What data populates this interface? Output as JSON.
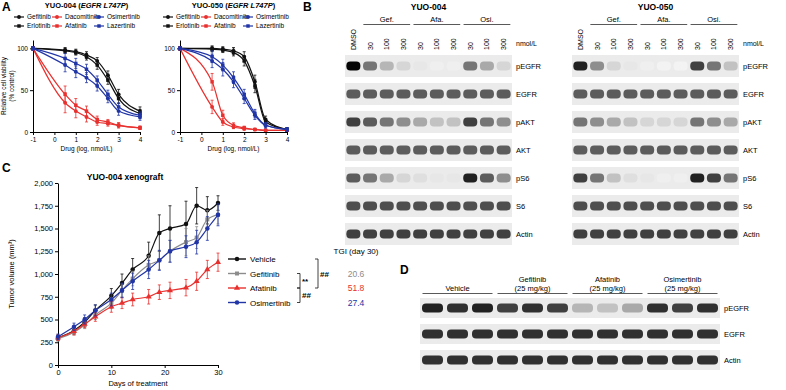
{
  "panel_labels": [
    "A",
    "B",
    "C",
    "D"
  ],
  "chart_data": [
    {
      "type": "line",
      "title": "YUO-004 (EGFR L747P)",
      "ylabel": [
        "Relative cell viability",
        "(% control)"
      ],
      "xlabel": "Drug (log, nmol/L)",
      "x": [
        -1,
        0.5,
        1,
        1.5,
        2,
        2.5,
        3,
        4
      ],
      "xlim": [
        -1,
        4
      ],
      "xticks": [
        -1,
        0,
        1,
        2,
        3,
        4
      ],
      "ylim": [
        0,
        110
      ],
      "yticks": [
        0,
        50,
        100
      ],
      "legend": "top",
      "series": [
        {
          "name": "Gefitinib",
          "color": "#111111",
          "marker": "circle",
          "values": [
            100,
            98,
            96,
            92,
            85,
            68,
            45,
            25
          ],
          "errors": [
            2,
            3,
            3,
            4,
            4,
            5,
            6,
            5
          ]
        },
        {
          "name": "Erlotinib",
          "color": "#111111",
          "marker": "square",
          "values": [
            100,
            97,
            95,
            90,
            80,
            62,
            40,
            22
          ],
          "errors": [
            2,
            3,
            3,
            4,
            5,
            5,
            6,
            5
          ]
        },
        {
          "name": "Dacomitinib",
          "color": "#e8312f",
          "marker": "circle",
          "values": [
            100,
            35,
            25,
            18,
            12,
            10,
            8,
            5
          ],
          "errors": [
            2,
            12,
            8,
            6,
            4,
            3,
            3,
            2
          ]
        },
        {
          "name": "Afatinib",
          "color": "#e8312f",
          "marker": "square",
          "values": [
            100,
            45,
            32,
            25,
            15,
            12,
            8,
            5
          ],
          "errors": [
            2,
            10,
            8,
            6,
            4,
            3,
            3,
            2
          ]
        },
        {
          "name": "Osimertinib",
          "color": "#2135a6",
          "marker": "circle",
          "values": [
            100,
            80,
            72,
            65,
            55,
            40,
            25,
            18
          ],
          "errors": [
            2,
            8,
            7,
            6,
            6,
            5,
            5,
            4
          ]
        },
        {
          "name": "Lazertinib",
          "color": "#2135a6",
          "marker": "square",
          "values": [
            100,
            88,
            82,
            75,
            62,
            45,
            30,
            20
          ],
          "errors": [
            2,
            6,
            6,
            6,
            5,
            5,
            5,
            4
          ]
        }
      ]
    },
    {
      "type": "line",
      "title": "YUO-050 (EGFR L747P)",
      "xlabel": "Drug (log, nmol/L)",
      "x": [
        -1,
        0.5,
        1,
        1.5,
        2,
        2.5,
        3,
        4
      ],
      "xlim": [
        -1,
        4
      ],
      "xticks": [
        -1,
        0,
        1,
        2,
        3,
        4
      ],
      "ylim": [
        0,
        110
      ],
      "yticks": [
        0,
        50,
        100
      ],
      "legend": "top",
      "series": [
        {
          "name": "Gefitinib",
          "color": "#111111",
          "marker": "circle",
          "values": [
            100,
            100,
            99,
            97,
            90,
            60,
            15,
            3
          ],
          "errors": [
            2,
            3,
            3,
            4,
            6,
            8,
            4,
            2
          ]
        },
        {
          "name": "Erlotinib",
          "color": "#111111",
          "marker": "square",
          "values": [
            100,
            99,
            98,
            95,
            85,
            55,
            12,
            3
          ],
          "errors": [
            2,
            3,
            3,
            4,
            6,
            8,
            4,
            2
          ]
        },
        {
          "name": "Dacomitinib",
          "color": "#e8312f",
          "marker": "circle",
          "values": [
            100,
            30,
            12,
            6,
            4,
            3,
            2,
            2
          ],
          "errors": [
            2,
            8,
            4,
            2,
            2,
            1,
            1,
            1
          ]
        },
        {
          "name": "Afatinib",
          "color": "#e8312f",
          "marker": "square",
          "values": [
            100,
            60,
            20,
            8,
            5,
            3,
            2,
            2
          ],
          "errors": [
            2,
            10,
            6,
            3,
            2,
            1,
            1,
            1
          ]
        },
        {
          "name": "Osimertinib",
          "color": "#2135a6",
          "marker": "circle",
          "values": [
            100,
            85,
            75,
            60,
            40,
            20,
            8,
            3
          ],
          "errors": [
            2,
            8,
            8,
            7,
            6,
            5,
            3,
            2
          ]
        },
        {
          "name": "Lazertinib",
          "color": "#2135a6",
          "marker": "square",
          "values": [
            100,
            90,
            80,
            65,
            45,
            22,
            8,
            3
          ],
          "errors": [
            2,
            7,
            7,
            7,
            6,
            5,
            3,
            2
          ]
        }
      ]
    },
    {
      "type": "line",
      "title": "YUO-004 xenograft",
      "xlabel": "Days of treatment",
      "ylabel": "Tumor volume (mm³)",
      "x": [
        0,
        3,
        5,
        7,
        10,
        12,
        14,
        17,
        19,
        21,
        24,
        26,
        28,
        30
      ],
      "xlim": [
        0,
        30
      ],
      "xticks": [
        0,
        10,
        20,
        30
      ],
      "ylim": [
        0,
        2000
      ],
      "yticks": [
        0,
        250,
        500,
        750,
        {
          "value": 1000,
          "label": "1,000"
        },
        {
          "value": 1250,
          "label": "1,250"
        },
        {
          "value": 1500,
          "label": "1,500"
        },
        {
          "value": 1750,
          "label": "1,750"
        },
        {
          "value": 2000,
          "label": "2,000"
        }
      ],
      "legend": "right",
      "series": [
        {
          "name": "Vehicle",
          "color": "#111111",
          "marker": "circle",
          "values": [
            300,
            380,
            470,
            600,
            760,
            900,
            1050,
            1200,
            1450,
            1500,
            1550,
            1750,
            1700,
            1780
          ],
          "errors": [
            30,
            40,
            50,
            60,
            80,
            100,
            120,
            150,
            200,
            250,
            250,
            200,
            150,
            80
          ]
        },
        {
          "name": "Gefitinib",
          "color": "#8c8c8c",
          "marker": "square",
          "values": [
            290,
            360,
            440,
            550,
            680,
            820,
            950,
            1100,
            1150,
            1250,
            1350,
            1400,
            1600,
            1650
          ],
          "errors": [
            30,
            30,
            40,
            50,
            60,
            70,
            80,
            100,
            100,
            120,
            150,
            120,
            100,
            100
          ]
        },
        {
          "name": "Afatinib",
          "color": "#e8312f",
          "marker": "triangle",
          "values": [
            300,
            370,
            450,
            530,
            640,
            680,
            720,
            750,
            800,
            820,
            850,
            920,
            1050,
            1130
          ],
          "errors": [
            30,
            40,
            40,
            50,
            60,
            60,
            70,
            80,
            80,
            90,
            90,
            100,
            100,
            100
          ]
        },
        {
          "name": "Osimertinib",
          "color": "#2135a6",
          "marker": "circle",
          "values": [
            310,
            420,
            500,
            600,
            720,
            820,
            920,
            1050,
            1150,
            1250,
            1300,
            1350,
            1500,
            1650
          ],
          "errors": [
            30,
            40,
            50,
            60,
            70,
            80,
            90,
            100,
            110,
            120,
            120,
            130,
            130,
            120
          ]
        }
      ],
      "significance": [
        {
          "between": [
            "Gefitinib",
            "Afatinib"
          ],
          "label": "**"
        },
        {
          "between": [
            "Vehicle",
            "Afatinib"
          ],
          "label": "##"
        },
        {
          "between": [
            "Afatinib",
            "Osimertinib"
          ],
          "label": "##"
        }
      ],
      "tgi_title": "TGI (day 30)",
      "tgi": [
        null,
        20.6,
        51.8,
        27.4
      ]
    }
  ],
  "blots": [
    {
      "title": "YUO-004",
      "lanes": [
        "DMSO",
        30,
        100,
        300,
        30,
        100,
        300,
        30,
        100,
        300
      ],
      "groups": [
        "Gef.",
        "Afa.",
        "Osi."
      ],
      "unit": "nmol/L",
      "rows": [
        {
          "label": "pEGFR",
          "intensity": [
            1,
            0.6,
            0.35,
            0.2,
            0.1,
            0.05,
            0.05,
            0.6,
            0.4,
            0.2
          ]
        },
        {
          "label": "EGFR",
          "intensity": [
            0.7,
            0.7,
            0.7,
            0.7,
            0.7,
            0.7,
            0.7,
            0.7,
            0.7,
            0.7
          ]
        },
        {
          "label": "pAKT",
          "intensity": [
            0.8,
            0.7,
            0.6,
            0.5,
            0.4,
            0.3,
            0.3,
            0.8,
            0.6,
            0.5
          ]
        },
        {
          "label": "AKT",
          "intensity": [
            0.7,
            0.7,
            0.7,
            0.7,
            0.7,
            0.7,
            0.7,
            0.7,
            0.7,
            0.7
          ]
        },
        {
          "label": "pS6",
          "intensity": [
            0.7,
            0.6,
            0.4,
            0.2,
            0.15,
            0.1,
            0.1,
            0.9,
            0.7,
            0.5
          ]
        },
        {
          "label": "S6",
          "intensity": [
            0.75,
            0.75,
            0.75,
            0.75,
            0.75,
            0.75,
            0.75,
            0.75,
            0.75,
            0.75
          ]
        },
        {
          "label": "Actin",
          "intensity": [
            0.8,
            0.8,
            0.8,
            0.8,
            0.8,
            0.8,
            0.8,
            0.8,
            0.8,
            0.8
          ]
        }
      ]
    },
    {
      "title": "YUO-050",
      "lanes": [
        "DMSO",
        30,
        100,
        300,
        30,
        100,
        300,
        30,
        100,
        300
      ],
      "groups": [
        "Gef.",
        "Afa.",
        "Osi."
      ],
      "unit": "nmol/L",
      "rows": [
        {
          "label": "pEGFR",
          "intensity": [
            0.9,
            0.5,
            0.2,
            0.1,
            0.05,
            0.02,
            0.02,
            0.8,
            0.6,
            0.3
          ]
        },
        {
          "label": "EGFR",
          "intensity": [
            0.7,
            0.7,
            0.7,
            0.7,
            0.7,
            0.7,
            0.7,
            0.7,
            0.7,
            0.7
          ]
        },
        {
          "label": "pAKT",
          "intensity": [
            0.6,
            0.5,
            0.4,
            0.3,
            0.2,
            0.2,
            0.2,
            0.6,
            0.5,
            0.4
          ]
        },
        {
          "label": "AKT",
          "intensity": [
            0.7,
            0.7,
            0.7,
            0.7,
            0.7,
            0.7,
            0.7,
            0.7,
            0.7,
            0.7
          ]
        },
        {
          "label": "pS6",
          "intensity": [
            0.8,
            0.6,
            0.3,
            0.15,
            0.1,
            0.05,
            0.05,
            0.9,
            0.8,
            0.6
          ]
        },
        {
          "label": "S6",
          "intensity": [
            0.75,
            0.75,
            0.75,
            0.75,
            0.75,
            0.75,
            0.75,
            0.75,
            0.75,
            0.75
          ]
        },
        {
          "label": "Actin",
          "intensity": [
            0.8,
            0.8,
            0.8,
            0.8,
            0.8,
            0.8,
            0.8,
            0.8,
            0.8,
            0.8
          ]
        }
      ]
    },
    {
      "groups": [
        [
          "Vehicle"
        ],
        [
          "Gefitinib",
          "(25 mg/kg)"
        ],
        [
          "Afatinib",
          "(25 mg/kg)"
        ],
        [
          "Osimertinib",
          "(25 mg/kg)"
        ]
      ],
      "rows": [
        {
          "label": "pEGFR",
          "intensity": [
            0.9,
            0.85,
            0.9,
            0.8,
            0.85,
            0.8,
            0.35,
            0.3,
            0.4,
            0.85,
            0.8,
            0.85
          ]
        },
        {
          "label": "EGFR",
          "intensity": [
            0.85,
            0.85,
            0.85,
            0.85,
            0.85,
            0.85,
            0.85,
            0.85,
            0.85,
            0.85,
            0.85,
            0.85
          ]
        },
        {
          "label": "Actin",
          "intensity": [
            0.85,
            0.85,
            0.85,
            0.85,
            0.85,
            0.85,
            0.85,
            0.85,
            0.85,
            0.85,
            0.85,
            0.85
          ]
        }
      ]
    }
  ]
}
